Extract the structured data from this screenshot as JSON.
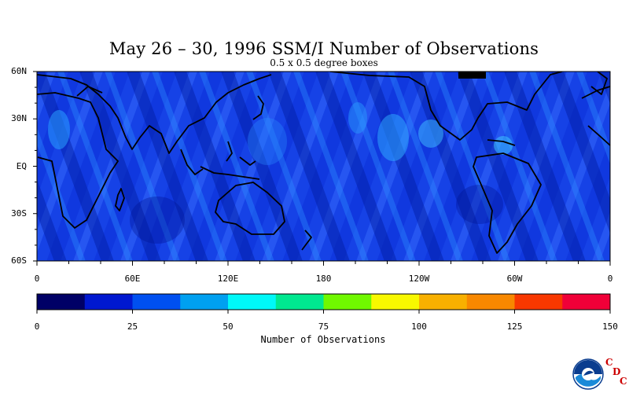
{
  "title": "May 26 – 30, 1996 SSM/I Number of Observations",
  "subtitle": "0.5 x 0.5 degree boxes",
  "map": {
    "lat_labels": [
      {
        "text": "60N",
        "lat": 60
      },
      {
        "text": "30N",
        "lat": 30
      },
      {
        "text": "EQ",
        "lat": 0
      },
      {
        "text": "30S",
        "lat": -30
      },
      {
        "text": "60S",
        "lat": -60
      }
    ],
    "lon_labels": [
      {
        "text": "0",
        "lon": 0
      },
      {
        "text": "60E",
        "lon": 60
      },
      {
        "text": "120E",
        "lon": 120
      },
      {
        "text": "180",
        "lon": 180
      },
      {
        "text": "120W",
        "lon": 240
      },
      {
        "text": "60W",
        "lon": 300
      },
      {
        "text": "0",
        "lon": 360
      }
    ],
    "lat_range": [
      -60,
      60
    ],
    "lon_range": [
      0,
      360
    ]
  },
  "colorbar": {
    "title": "Number of Observations",
    "range": [
      0,
      150
    ],
    "colors": [
      "#000066",
      "#0018d0",
      "#0050f0",
      "#00a0f0",
      "#00f8f8",
      "#00e890",
      "#70f800",
      "#f8f800",
      "#f8b000",
      "#f88800",
      "#f83800",
      "#f00038"
    ],
    "tick_labels": [
      "0",
      "25",
      "50",
      "75",
      "100",
      "125",
      "150"
    ],
    "tick_values": [
      0,
      25,
      50,
      75,
      100,
      125,
      150
    ]
  },
  "logos": {
    "noaa_text": "NOAA",
    "cdc_letters": [
      "C",
      "D",
      "C"
    ]
  }
}
